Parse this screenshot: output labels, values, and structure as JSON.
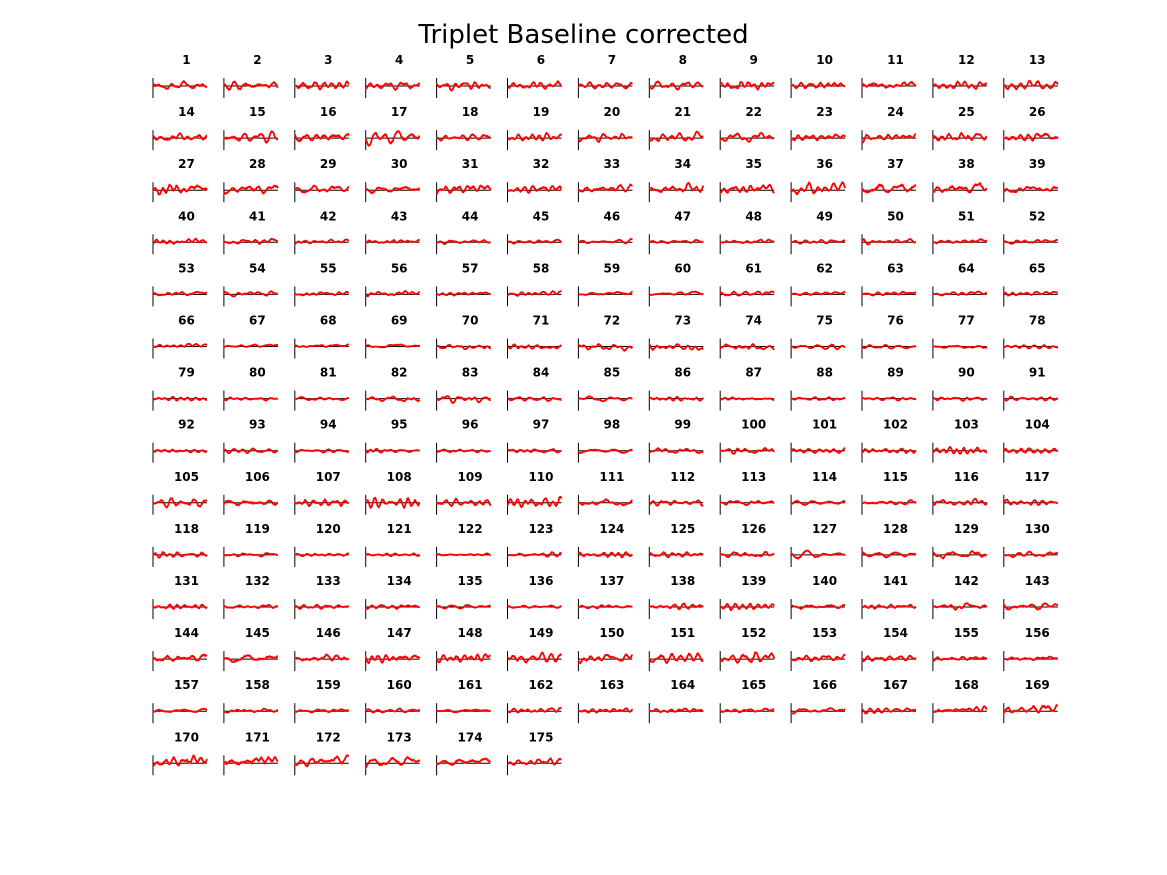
{
  "chart_data": {
    "type": "line",
    "title": "Triplet Baseline corrected",
    "layout": {
      "rows": 14,
      "cols": 13
    },
    "panel_count": 175,
    "panel_labels": [
      "1",
      "2",
      "3",
      "4",
      "5",
      "6",
      "7",
      "8",
      "9",
      "10",
      "11",
      "12",
      "13",
      "14",
      "15",
      "16",
      "17",
      "18",
      "19",
      "20",
      "21",
      "22",
      "23",
      "24",
      "25",
      "26",
      "27",
      "28",
      "29",
      "30",
      "31",
      "32",
      "33",
      "34",
      "35",
      "36",
      "37",
      "38",
      "39",
      "40",
      "41",
      "42",
      "43",
      "44",
      "45",
      "46",
      "47",
      "48",
      "49",
      "50",
      "51",
      "52",
      "53",
      "54",
      "55",
      "56",
      "57",
      "58",
      "59",
      "60",
      "61",
      "62",
      "63",
      "64",
      "65",
      "66",
      "67",
      "68",
      "69",
      "70",
      "71",
      "72",
      "73",
      "74",
      "75",
      "76",
      "77",
      "78",
      "79",
      "80",
      "81",
      "82",
      "83",
      "84",
      "85",
      "86",
      "87",
      "88",
      "89",
      "90",
      "91",
      "92",
      "93",
      "94",
      "95",
      "96",
      "97",
      "98",
      "99",
      "100",
      "101",
      "102",
      "103",
      "104",
      "105",
      "106",
      "107",
      "108",
      "109",
      "110",
      "111",
      "112",
      "113",
      "114",
      "115",
      "116",
      "117",
      "118",
      "119",
      "120",
      "121",
      "122",
      "123",
      "124",
      "125",
      "126",
      "127",
      "128",
      "129",
      "130",
      "131",
      "132",
      "133",
      "134",
      "135",
      "136",
      "137",
      "138",
      "139",
      "140",
      "141",
      "142",
      "143",
      "144",
      "145",
      "146",
      "147",
      "148",
      "149",
      "150",
      "151",
      "152",
      "153",
      "154",
      "155",
      "156",
      "157",
      "158",
      "159",
      "160",
      "161",
      "162",
      "163",
      "164",
      "165",
      "166",
      "167",
      "168",
      "169",
      "170",
      "171",
      "172",
      "173",
      "174",
      "175"
    ],
    "series_color": "#ff0000",
    "shade_color": "#f5a3a3",
    "baseline_color": "#000000",
    "axes_color": "#000000",
    "grid": false,
    "legend": false,
    "ylim": [
      -3,
      3
    ],
    "panel_amplitude": [
      1.3,
      1.3,
      1.3,
      1.1,
      1.0,
      1.1,
      1.0,
      1.2,
      1.3,
      1.3,
      1.2,
      1.1,
      1.2,
      1.1,
      1.3,
      1.5,
      1.6,
      1.0,
      1.0,
      1.0,
      1.1,
      1.1,
      1.1,
      1.2,
      1.2,
      1.3,
      1.3,
      1.3,
      1.1,
      1.1,
      1.6,
      1.2,
      1.3,
      1.4,
      1.3,
      1.5,
      1.6,
      1.6,
      1.0,
      0.7,
      0.7,
      0.6,
      0.6,
      0.5,
      0.5,
      0.5,
      0.5,
      0.5,
      0.5,
      0.6,
      0.6,
      0.6,
      0.6,
      0.6,
      0.5,
      0.6,
      0.5,
      0.6,
      0.6,
      0.6,
      0.6,
      0.6,
      0.6,
      0.6,
      0.6,
      0.5,
      0.4,
      0.4,
      0.4,
      0.7,
      0.8,
      0.9,
      0.9,
      0.9,
      0.6,
      0.6,
      0.6,
      0.5,
      0.5,
      0.5,
      0.5,
      0.8,
      0.9,
      0.7,
      0.6,
      0.6,
      0.5,
      0.5,
      0.5,
      0.5,
      0.6,
      0.8,
      0.6,
      0.6,
      0.6,
      0.7,
      0.8,
      0.8,
      0.8,
      0.9,
      0.9,
      0.9,
      1.0,
      1.3,
      1.2,
      1.2,
      1.3,
      1.5,
      1.3,
      1.1,
      1.0,
      0.9,
      0.8,
      0.8,
      0.9,
      1.0,
      0.8,
      0.6,
      0.5,
      0.5,
      0.4,
      0.5,
      0.6,
      0.7,
      0.7,
      0.8,
      0.9,
      0.8,
      0.8,
      0.9,
      0.7,
      0.6,
      0.6,
      0.6,
      0.5,
      0.5,
      0.6,
      0.8,
      0.8,
      0.7,
      0.7,
      0.8,
      1.0,
      1.2,
      1.2,
      1.2,
      1.2,
      1.3,
      1.3,
      1.3,
      1.4,
      1.3,
      1.0,
      0.8,
      0.7,
      0.6,
      0.5,
      0.5,
      0.5,
      0.5,
      0.5,
      0.7,
      0.6,
      0.7,
      0.6,
      0.7,
      0.7,
      1.1,
      1.6,
      1.7,
      1.8,
      1.8,
      1.3,
      1.2,
      1.0
    ]
  }
}
